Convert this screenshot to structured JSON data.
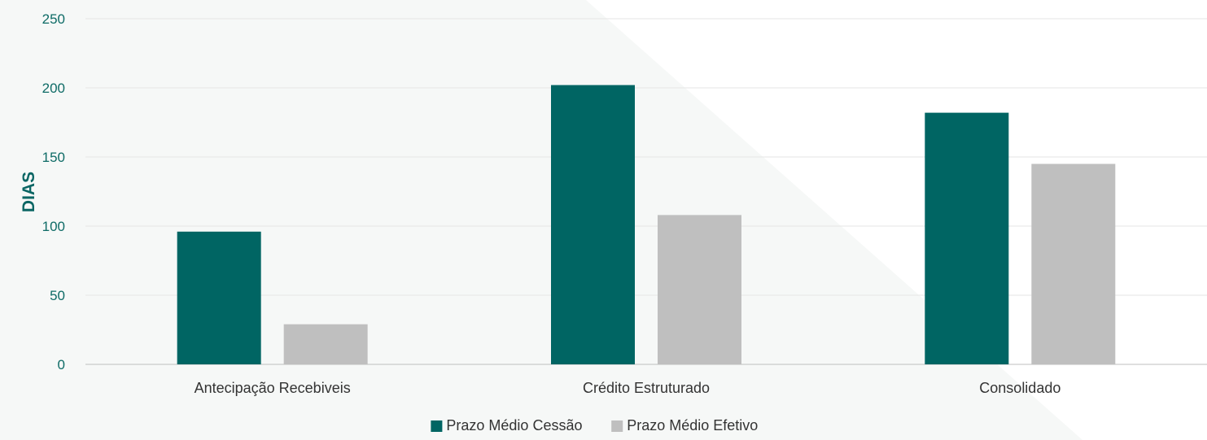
{
  "chart_data": {
    "type": "bar",
    "title": "",
    "xlabel": "",
    "ylabel": "DIAS",
    "ylim": [
      0,
      250
    ],
    "yticks": [
      0,
      50,
      100,
      150,
      200,
      250
    ],
    "grid": true,
    "legend_position": "bottom-center",
    "categories": [
      "Antecipação Recebiveis",
      "Crédito Estruturado",
      "Consolidado"
    ],
    "series": [
      {
        "name": "Prazo Médio Cessão",
        "color": "#006563",
        "values": [
          96,
          202,
          182
        ]
      },
      {
        "name": "Prazo Médio Efetivo",
        "color": "#bfbfbf",
        "values": [
          29,
          108,
          145
        ]
      }
    ]
  }
}
